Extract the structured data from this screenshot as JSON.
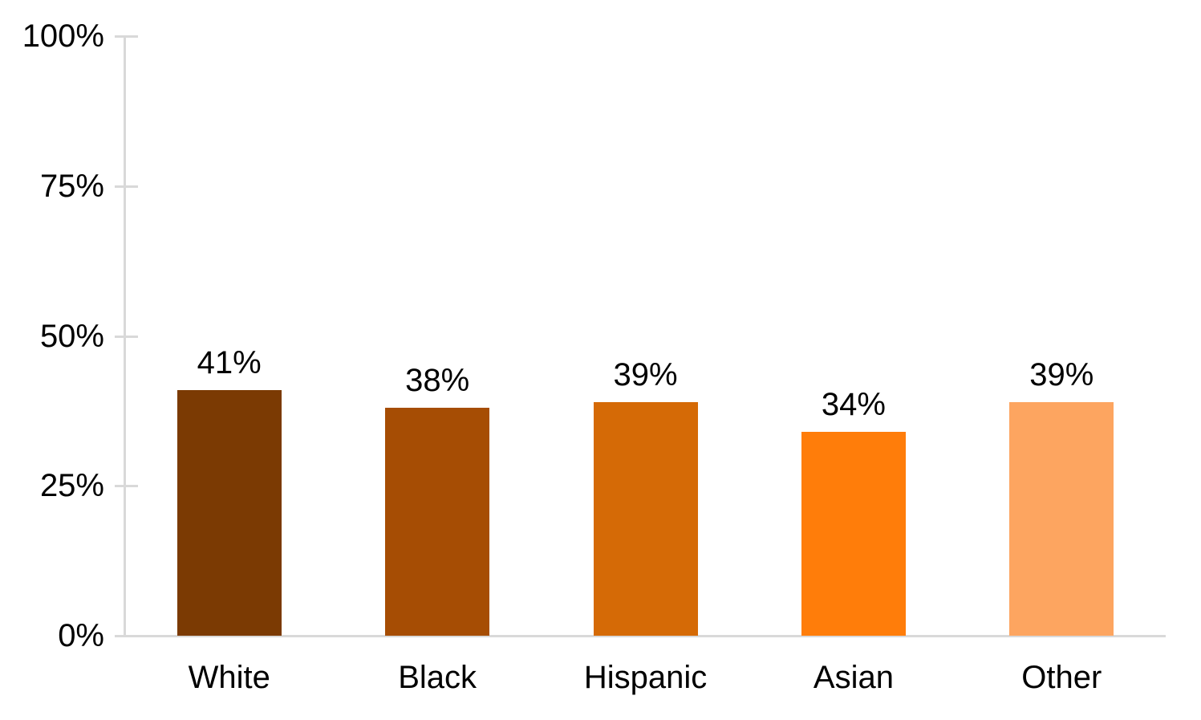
{
  "chart_data": {
    "type": "bar",
    "title": "",
    "categories": [
      "White",
      "Black",
      "Hispanic",
      "Asian",
      "Other"
    ],
    "values": [
      41,
      38,
      39,
      34,
      39
    ],
    "value_labels": [
      "41%",
      "38%",
      "39%",
      "34%",
      "39%"
    ],
    "bar_colors": [
      "#7B3A03",
      "#A64D04",
      "#D56A06",
      "#FF7D0A",
      "#FDA560"
    ],
    "xlabel": "",
    "ylabel": "",
    "ylim": [
      0,
      100
    ],
    "yticks": [
      0,
      25,
      50,
      75,
      100
    ],
    "ytick_labels": [
      "0%",
      "25%",
      "50%",
      "75%",
      "100%"
    ],
    "grid": false,
    "legend": false,
    "axis_color": "#D9D9D9",
    "text_color": "#000000",
    "background_color": "#FFFFFF"
  }
}
